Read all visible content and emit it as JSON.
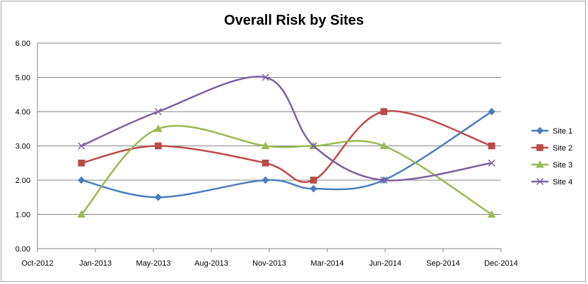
{
  "chart_data": {
    "type": "line",
    "title": "Overall Risk by Sites",
    "xlabel": "",
    "ylabel": "",
    "ylim": [
      0,
      6
    ],
    "y_ticks": [
      "0.00",
      "1.00",
      "2.00",
      "3.00",
      "4.00",
      "5.00",
      "6.00"
    ],
    "x_ticks": [
      "Oct-2012",
      "Jan-2013",
      "May-2013",
      "Aug-2013",
      "Nov-2013",
      "Mar-2014",
      "Jun-2014",
      "Sep-2014",
      "Dec-2014"
    ],
    "x": [
      "2012-12-15",
      "2013-04-25",
      "2013-10-25",
      "2014-01-15",
      "2014-05-15",
      "2014-11-15"
    ],
    "grid": true,
    "legend_position": "right",
    "series": [
      {
        "name": "Site 1",
        "color": "#4a7ebb",
        "marker": "diamond",
        "values": [
          2.0,
          1.5,
          2.0,
          1.75,
          2.0,
          4.0
        ]
      },
      {
        "name": "Site 2",
        "color": "#be4b48",
        "marker": "square",
        "values": [
          2.5,
          3.0,
          2.5,
          2.0,
          4.0,
          3.0
        ]
      },
      {
        "name": "Site 3",
        "color": "#98b954",
        "marker": "triangle",
        "values": [
          1.0,
          3.5,
          3.0,
          3.0,
          3.0,
          1.0
        ]
      },
      {
        "name": "Site 4",
        "color": "#7d60a0",
        "marker": "x",
        "values": [
          3.0,
          4.0,
          5.0,
          3.0,
          2.0,
          2.5
        ]
      }
    ]
  }
}
